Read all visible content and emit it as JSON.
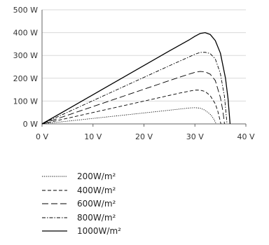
{
  "chart_data": {
    "type": "line",
    "x_tick_labels": [
      "0 V",
      "10 V",
      "20 V",
      "30 V",
      "40 V"
    ],
    "y_tick_labels": [
      "0 W",
      "100 W",
      "200 W",
      "300 W",
      "400 W",
      "500 W"
    ],
    "xlim": [
      0,
      40
    ],
    "ylim": [
      0,
      500
    ],
    "grid": "horizontal",
    "legend_position": "bottom-left",
    "series": [
      {
        "name": "200W/m²",
        "dash": "dotted",
        "x": [
          0,
          5,
          10,
          15,
          20,
          25,
          27,
          29,
          30,
          31,
          32,
          33,
          33.6,
          34,
          34.2
        ],
        "y": [
          0,
          12,
          24,
          36,
          48,
          60,
          65,
          70,
          71,
          69,
          60,
          42,
          25,
          8,
          0
        ]
      },
      {
        "name": "400W/m²",
        "dash": "short-dash",
        "x": [
          0,
          5,
          10,
          15,
          20,
          25,
          27,
          29,
          30,
          31,
          32,
          33,
          34,
          34.5,
          35.1
        ],
        "y": [
          0,
          25,
          50,
          75,
          100,
          125,
          135,
          144,
          148,
          148,
          142,
          124,
          88,
          55,
          0
        ]
      },
      {
        "name": "600W/m²",
        "dash": "long-dash",
        "x": [
          0,
          5,
          10,
          15,
          20,
          25,
          27,
          29,
          30,
          31,
          32,
          33,
          34,
          35,
          35.5,
          35.8
        ],
        "y": [
          0,
          38,
          76,
          114,
          152,
          190,
          205,
          219,
          226,
          230,
          228,
          218,
          190,
          115,
          55,
          0
        ]
      },
      {
        "name": "800W/m²",
        "dash": "dash-dot",
        "x": [
          0,
          5,
          10,
          15,
          20,
          25,
          27,
          29,
          30,
          31,
          32,
          33,
          34,
          35,
          35.8,
          36.3
        ],
        "y": [
          0,
          51,
          102,
          153,
          204,
          255,
          275,
          295,
          305,
          313,
          314,
          308,
          285,
          220,
          120,
          0
        ]
      },
      {
        "name": "1000W/m²",
        "dash": "solid",
        "x": [
          0,
          5,
          10,
          15,
          20,
          25,
          27,
          29,
          30,
          31,
          32,
          33,
          34,
          35,
          36,
          36.5,
          36.9
        ],
        "y": [
          0,
          64,
          128,
          192,
          256,
          320,
          345,
          370,
          384,
          396,
          400,
          392,
          365,
          310,
          200,
          110,
          0
        ]
      }
    ]
  }
}
